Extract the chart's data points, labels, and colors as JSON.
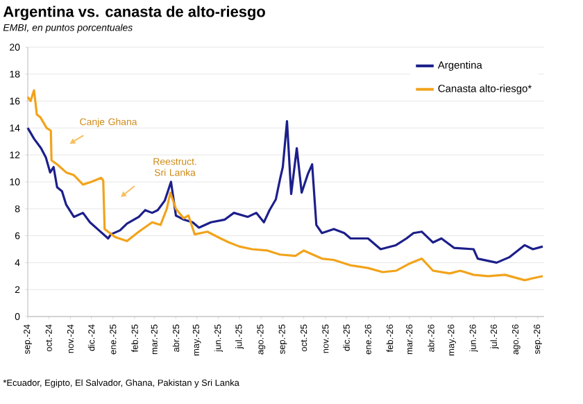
{
  "chart_data": {
    "type": "line",
    "title": "Argentina vs. canasta de alto-riesgo",
    "subtitle": "EMBI, en puntos porcentuales",
    "xlim": [
      "2024-09-01",
      "2026-09-10"
    ],
    "xticks": [
      {
        "value": "2024-09",
        "label": "sep.-24"
      },
      {
        "value": "2024-10",
        "label": "oct.-24"
      },
      {
        "value": "2024-11",
        "label": "nov.-24"
      },
      {
        "value": "2024-12",
        "label": "dic.-24"
      },
      {
        "value": "2025-01",
        "label": "ene.-25"
      },
      {
        "value": "2025-02",
        "label": "feb.-25"
      },
      {
        "value": "2025-03",
        "label": "mar.-25"
      },
      {
        "value": "2025-04",
        "label": "abr.-25"
      },
      {
        "value": "2025-05",
        "label": "may.-25"
      },
      {
        "value": "2025-06",
        "label": "jun.-25"
      },
      {
        "value": "2025-07",
        "label": "jul.-25"
      },
      {
        "value": "2025-08",
        "label": "ago.-25"
      },
      {
        "value": "2025-09",
        "label": "sep.-25"
      },
      {
        "value": "2025-10",
        "label": "oct.-25"
      },
      {
        "value": "2025-11",
        "label": "nov.-25"
      },
      {
        "value": "2025-12",
        "label": "dic.-25"
      },
      {
        "value": "2026-01",
        "label": "ene.-26"
      },
      {
        "value": "2026-02",
        "label": "feb.-26"
      },
      {
        "value": "2026-03",
        "label": "mar.-26"
      },
      {
        "value": "2026-04",
        "label": "abr.-26"
      },
      {
        "value": "2026-05",
        "label": "may.-26"
      },
      {
        "value": "2026-06",
        "label": "jun.-26"
      },
      {
        "value": "2026-07",
        "label": "jul.-26"
      },
      {
        "value": "2026-08",
        "label": "ago.-26"
      },
      {
        "value": "2026-09",
        "label": "sep.-26"
      }
    ],
    "ylim": [
      0,
      20
    ],
    "yticks": [
      0,
      2,
      4,
      6,
      8,
      10,
      12,
      14,
      16,
      18,
      20
    ],
    "grid": "y",
    "legend": "top right",
    "line_style": "solid",
    "series": [
      {
        "name": "Argentina",
        "color": "#1c1f8a",
        "x": [
          "2024-09-01",
          "2024-09-10",
          "2024-09-20",
          "2024-09-27",
          "2024-10-03",
          "2024-10-08",
          "2024-10-13",
          "2024-10-20",
          "2024-10-26",
          "2024-11-06",
          "2024-11-19",
          "2024-11-29",
          "2024-12-12",
          "2024-12-25",
          "2024-12-29",
          "2025-01-11",
          "2025-01-21",
          "2025-02-07",
          "2025-02-16",
          "2025-02-26",
          "2025-03-06",
          "2025-03-16",
          "2025-03-25",
          "2025-04-01",
          "2025-04-12",
          "2025-04-25",
          "2025-05-04",
          "2025-05-21",
          "2025-06-10",
          "2025-06-23",
          "2025-07-13",
          "2025-07-25",
          "2025-08-05",
          "2025-08-13",
          "2025-08-22",
          "2025-08-28",
          "2025-09-01",
          "2025-09-07",
          "2025-09-13",
          "2025-09-21",
          "2025-09-28",
          "2025-10-07",
          "2025-10-13",
          "2025-10-19",
          "2025-10-27",
          "2025-11-13",
          "2025-11-28",
          "2025-12-07",
          "2026-01-01",
          "2026-01-19",
          "2026-02-10",
          "2026-02-25",
          "2026-03-07",
          "2026-03-19",
          "2026-04-04",
          "2026-04-16",
          "2026-05-04",
          "2026-06-01",
          "2026-06-07",
          "2026-07-04",
          "2026-07-22",
          "2026-08-13",
          "2026-08-25",
          "2026-09-08"
        ],
        "values": [
          14,
          13.2,
          12.5,
          11.8,
          10.7,
          11.1,
          9.6,
          9.3,
          8.3,
          7.4,
          7.7,
          7.0,
          6.4,
          5.8,
          6.1,
          6.4,
          6.9,
          7.4,
          7.9,
          7.7,
          7.9,
          8.6,
          10.0,
          7.5,
          7.2,
          7.0,
          6.6,
          7.0,
          7.2,
          7.7,
          7.4,
          7.7,
          7.0,
          7.9,
          8.7,
          10.2,
          11.1,
          14.5,
          9.1,
          12.5,
          9.2,
          10.6,
          11.3,
          6.8,
          6.2,
          6.5,
          6.2,
          5.8,
          5.8,
          5.0,
          5.3,
          5.8,
          6.2,
          6.3,
          5.5,
          5.8,
          5.1,
          5.0,
          4.3,
          4.0,
          4.4,
          5.3,
          5.0,
          5.2
        ]
      },
      {
        "name": "Canasta alto-riesgo*",
        "color": "#f2a31b",
        "x": [
          "2024-09-01",
          "2024-09-05",
          "2024-09-10",
          "2024-09-14",
          "2024-09-19",
          "2024-09-28",
          "2024-10-04",
          "2024-10-05",
          "2024-10-13",
          "2024-10-26",
          "2024-11-06",
          "2024-11-19",
          "2024-12-01",
          "2024-12-15",
          "2024-12-18",
          "2024-12-20",
          "2025-01-04",
          "2025-01-21",
          "2025-02-07",
          "2025-02-26",
          "2025-03-10",
          "2025-03-19",
          "2025-03-24",
          "2025-04-01",
          "2025-04-12",
          "2025-04-19",
          "2025-04-28",
          "2025-05-16",
          "2025-06-04",
          "2025-06-16",
          "2025-07-01",
          "2025-07-19",
          "2025-08-10",
          "2025-08-28",
          "2025-09-19",
          "2025-10-01",
          "2025-10-27",
          "2025-11-13",
          "2025-12-07",
          "2026-01-01",
          "2026-01-22",
          "2026-02-10",
          "2026-02-28",
          "2026-03-19",
          "2026-04-04",
          "2026-04-28",
          "2026-05-13",
          "2026-06-01",
          "2026-06-22",
          "2026-07-16",
          "2026-08-13",
          "2026-09-08"
        ],
        "values": [
          16.3,
          16.0,
          16.8,
          15.0,
          14.8,
          14.0,
          13.8,
          11.6,
          11.3,
          10.7,
          10.5,
          9.8,
          10.0,
          10.3,
          10.1,
          6.5,
          5.9,
          5.6,
          6.3,
          7.0,
          6.8,
          8.0,
          9.2,
          8.0,
          7.3,
          7.5,
          6.1,
          6.3,
          5.8,
          5.5,
          5.2,
          5.0,
          4.9,
          4.6,
          4.5,
          4.9,
          4.3,
          4.2,
          3.8,
          3.6,
          3.3,
          3.4,
          3.9,
          4.3,
          3.4,
          3.2,
          3.4,
          3.1,
          3.0,
          3.1,
          2.7,
          3.0
        ]
      }
    ],
    "annotations": [
      "Canje Ghana",
      "Reestruct. Sri Lanka",
      "*Ecuador, Egipto, El Salvador, Ghana, Pakistan y Sri Lanka"
    ]
  }
}
